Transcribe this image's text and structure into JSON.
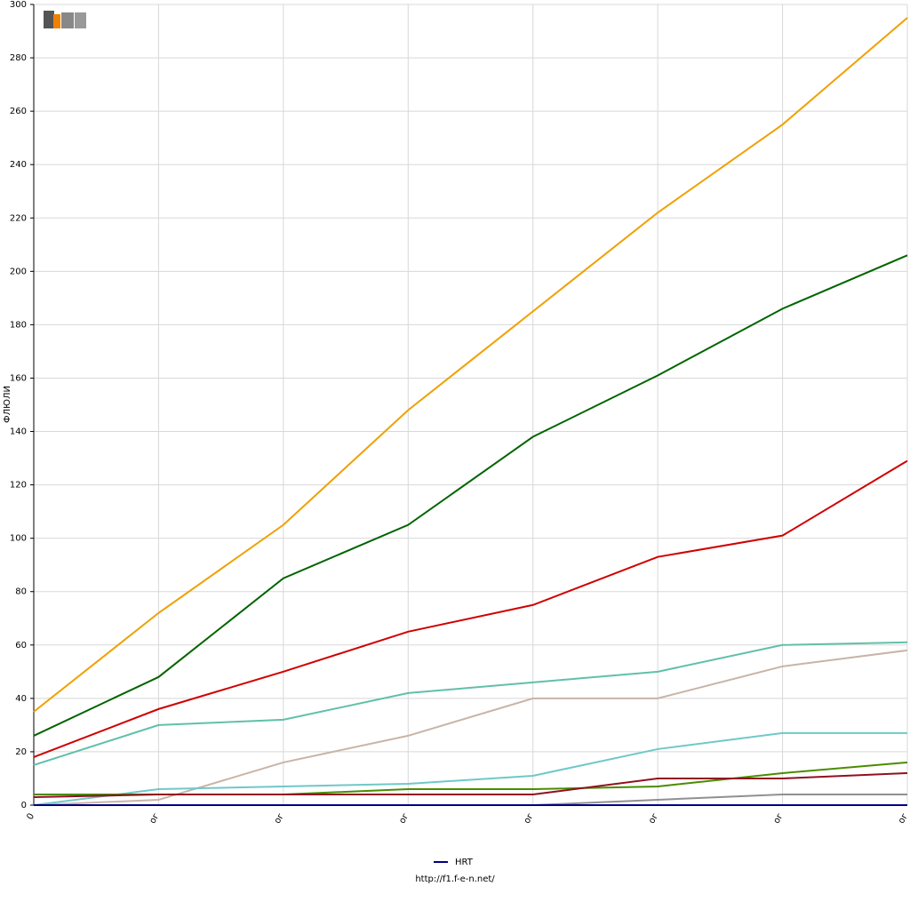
{
  "chart_data": {
    "type": "line",
    "ylabel": "ФЛЮЛИ",
    "footer": "http://f1.f-e-n.net/",
    "categories": [
      "0",
      "ог",
      "ог",
      "ог",
      "ог",
      "ог",
      "ог",
      "ог"
    ],
    "ylim": [
      0,
      300
    ],
    "yticks": [
      0,
      20,
      40,
      60,
      80,
      100,
      120,
      140,
      160,
      180,
      200,
      220,
      240,
      260,
      280,
      300
    ],
    "grid": true,
    "legend": "bottom",
    "series": [
      {
        "color": "#f0a000",
        "values": [
          35,
          72,
          105,
          148,
          185,
          222,
          255,
          295
        ]
      },
      {
        "color": "#006400",
        "values": [
          26,
          48,
          85,
          105,
          138,
          161,
          186,
          206
        ]
      },
      {
        "color": "#d00000",
        "values": [
          18,
          36,
          50,
          65,
          75,
          93,
          101,
          129
        ]
      },
      {
        "color": "#60c0a8",
        "values": [
          15,
          30,
          32,
          42,
          46,
          50,
          60,
          61
        ]
      },
      {
        "color": "#c8b4a8",
        "values": [
          0,
          2,
          16,
          26,
          40,
          40,
          52,
          58
        ]
      },
      {
        "color": "#70c8c8",
        "values": [
          0,
          6,
          7,
          8,
          11,
          21,
          27,
          27
        ]
      },
      {
        "color": "#4a8c00",
        "values": [
          4,
          4,
          4,
          6,
          6,
          7,
          12,
          16
        ]
      },
      {
        "color": "#901020",
        "values": [
          3,
          4,
          4,
          4,
          4,
          10,
          10,
          12
        ]
      },
      {
        "color": "#909090",
        "values": [
          null,
          null,
          null,
          null,
          0,
          2,
          4,
          4
        ]
      },
      {
        "name": "HRT",
        "color": "#000080",
        "values": [
          0,
          0,
          0,
          0,
          0,
          0,
          0,
          0
        ]
      }
    ]
  }
}
